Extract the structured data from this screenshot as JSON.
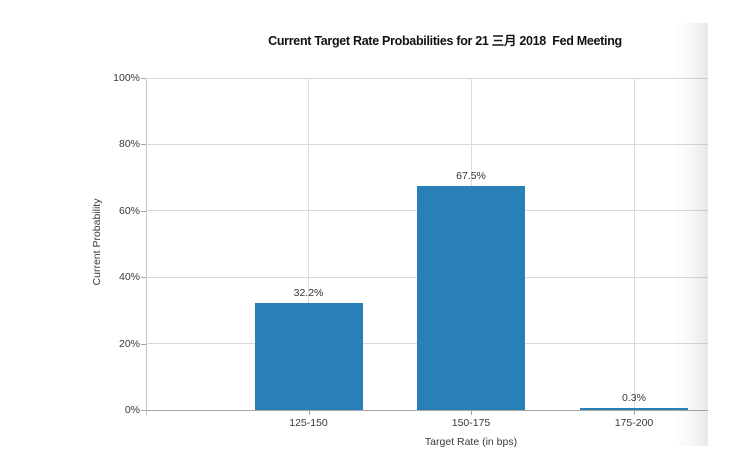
{
  "title": "Current Target Rate Probabilities for 21 三月 2018  Fed Meeting",
  "chart_data": {
    "type": "bar",
    "title": "Current Target Rate Probabilities for 21 三月 2018  Fed Meeting",
    "xlabel": "Target Rate (in bps)",
    "ylabel": "Current Probability",
    "categories": [
      "125-150",
      "150-175",
      "175-200"
    ],
    "values": [
      32.2,
      67.5,
      0.3
    ],
    "value_labels": [
      "32.2%",
      "67.5%",
      "0.3%"
    ],
    "y_tick_labels": [
      "0%",
      "20%",
      "40%",
      "60%",
      "80%",
      "100%"
    ],
    "y_tick_values": [
      0,
      20,
      40,
      60,
      80,
      100
    ],
    "ylim": [
      0,
      100
    ],
    "grid": true,
    "legend": false,
    "bar_color": "#2980b9",
    "gridline_color": "#d9d9d9",
    "axis_line_color": "#a6a6a6",
    "text_color": "#3a3a3a"
  }
}
